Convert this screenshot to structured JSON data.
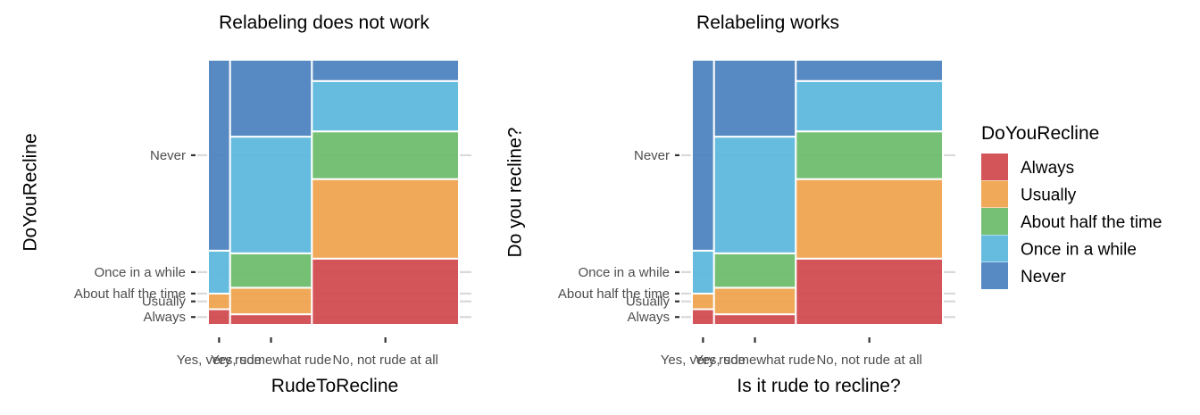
{
  "chart_data": [
    {
      "type": "mosaic",
      "title": "Relabeling does not work",
      "xlabel": "RudeToRecline",
      "ylabel": "DoYouRecline",
      "x_tick_labels": [
        "Yes, very rude",
        "Yes, somewhat rude",
        "No, not rude at all"
      ],
      "y_tick_labels": [
        "Always",
        "Usually",
        "About half the time",
        "Once in a while",
        "Never"
      ],
      "grid": true,
      "categories": [
        "Yes, very rude",
        "Yes, somewhat rude",
        "No, not rude at all"
      ],
      "column_widths": [
        0.088,
        0.326,
        0.586
      ],
      "series": [
        {
          "name": "Always",
          "values": [
            0.059,
            0.04,
            0.25
          ]
        },
        {
          "name": "Usually",
          "values": [
            0.059,
            0.1,
            0.3
          ]
        },
        {
          "name": "About half the time",
          "values": [
            0.0,
            0.13,
            0.18
          ]
        },
        {
          "name": "Once in a while",
          "values": [
            0.162,
            0.44,
            0.19
          ]
        },
        {
          "name": "Never",
          "values": [
            0.72,
            0.29,
            0.08
          ]
        }
      ],
      "ylim": [
        0,
        1
      ]
    },
    {
      "type": "mosaic",
      "title": "Relabeling works",
      "xlabel": "Is it rude to recline?",
      "ylabel": "Do you recline?",
      "x_tick_labels": [
        "Yes, very rude",
        "Yes, somewhat rude",
        "No, not rude at all"
      ],
      "y_tick_labels": [
        "Always",
        "Usually",
        "About half the time",
        "Once in a while",
        "Never"
      ],
      "grid": true,
      "categories": [
        "Yes, very rude",
        "Yes, somewhat rude",
        "No, not rude at all"
      ],
      "column_widths": [
        0.088,
        0.326,
        0.586
      ],
      "series": [
        {
          "name": "Always",
          "values": [
            0.059,
            0.04,
            0.25
          ]
        },
        {
          "name": "Usually",
          "values": [
            0.059,
            0.1,
            0.3
          ]
        },
        {
          "name": "About half the time",
          "values": [
            0.0,
            0.13,
            0.18
          ]
        },
        {
          "name": "Once in a while",
          "values": [
            0.162,
            0.44,
            0.19
          ]
        },
        {
          "name": "Never",
          "values": [
            0.72,
            0.29,
            0.08
          ]
        }
      ],
      "ylim": [
        0,
        1
      ]
    }
  ],
  "legend": {
    "title": "DoYouRecline",
    "placement": "right",
    "items": [
      {
        "label": "Always",
        "color": "#d0474c"
      },
      {
        "label": "Usually",
        "color": "#eea24c"
      },
      {
        "label": "About half the time",
        "color": "#6cbb6a"
      },
      {
        "label": "Once in a while",
        "color": "#5ab7dc"
      },
      {
        "label": "Never",
        "color": "#4a80bd"
      }
    ]
  },
  "colors": {
    "Always": "#d0474c",
    "Usually": "#eea24c",
    "About half the time": "#6cbb6a",
    "Once in a while": "#5ab7dc",
    "Never": "#4a80bd",
    "grid": "#d9d9d9",
    "tick": "#333333"
  }
}
